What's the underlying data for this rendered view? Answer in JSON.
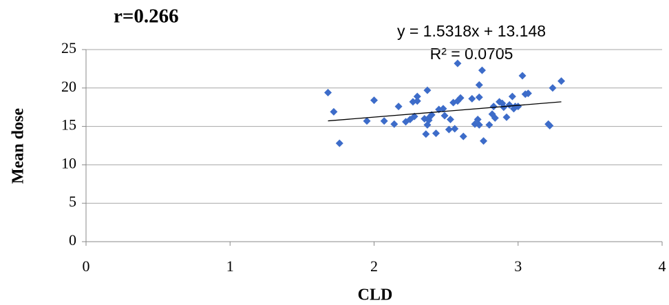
{
  "chart_data": {
    "type": "scatter",
    "title": "r=0.266",
    "x_label": "CLD",
    "y_label": "Mean dose",
    "annotations": [
      "y = 1.5318x + 13.148",
      "R² = 0.0705"
    ],
    "xlim": [
      0,
      4
    ],
    "xticks": [
      0,
      1,
      2,
      3,
      4
    ],
    "ylim": [
      0,
      25
    ],
    "yticks": [
      0,
      5,
      10,
      15,
      20,
      25
    ],
    "grid": true,
    "x": [
      1.68,
      1.72,
      1.76,
      1.95,
      2.0,
      2.07,
      2.14,
      2.17,
      2.22,
      2.25,
      2.27,
      2.28,
      2.3,
      2.3,
      2.35,
      2.37,
      2.36,
      2.37,
      2.38,
      2.4,
      2.38,
      2.43,
      2.45,
      2.48,
      2.49,
      2.52,
      2.53,
      2.55,
      2.56,
      2.58,
      2.58,
      2.6,
      2.62,
      2.68,
      2.7,
      2.72,
      2.73,
      2.73,
      2.73,
      2.75,
      2.76,
      2.8,
      2.82,
      2.83,
      2.84,
      2.87,
      2.89,
      2.9,
      2.92,
      2.94,
      2.96,
      2.97,
      2.98,
      3.0,
      3.03,
      3.05,
      3.07,
      3.21,
      3.22,
      3.24,
      3.3
    ],
    "series": [
      {
        "color": "#3d6cc9",
        "values": [
          19.4,
          16.9,
          12.8,
          15.7,
          18.4,
          15.7,
          15.3,
          17.6,
          15.6,
          15.9,
          18.2,
          16.3,
          18.9,
          18.3,
          16.0,
          19.7,
          14.0,
          15.2,
          16.1,
          16.5,
          15.8,
          14.1,
          17.2,
          17.3,
          16.4,
          14.6,
          15.9,
          18.1,
          14.7,
          18.3,
          23.2,
          18.7,
          13.7,
          18.6,
          15.3,
          15.9,
          15.2,
          20.4,
          18.8,
          22.3,
          13.1,
          15.2,
          16.6,
          17.6,
          16.1,
          18.2,
          18.0,
          17.5,
          16.2,
          17.8,
          18.9,
          17.3,
          17.6,
          17.6,
          21.6,
          19.2,
          19.3,
          15.3,
          15.1,
          20.0,
          20.9
        ]
      }
    ],
    "trendline": {
      "color": "#000000",
      "x": [
        1.68,
        3.3
      ],
      "values": [
        15.72,
        18.2
      ]
    }
  }
}
